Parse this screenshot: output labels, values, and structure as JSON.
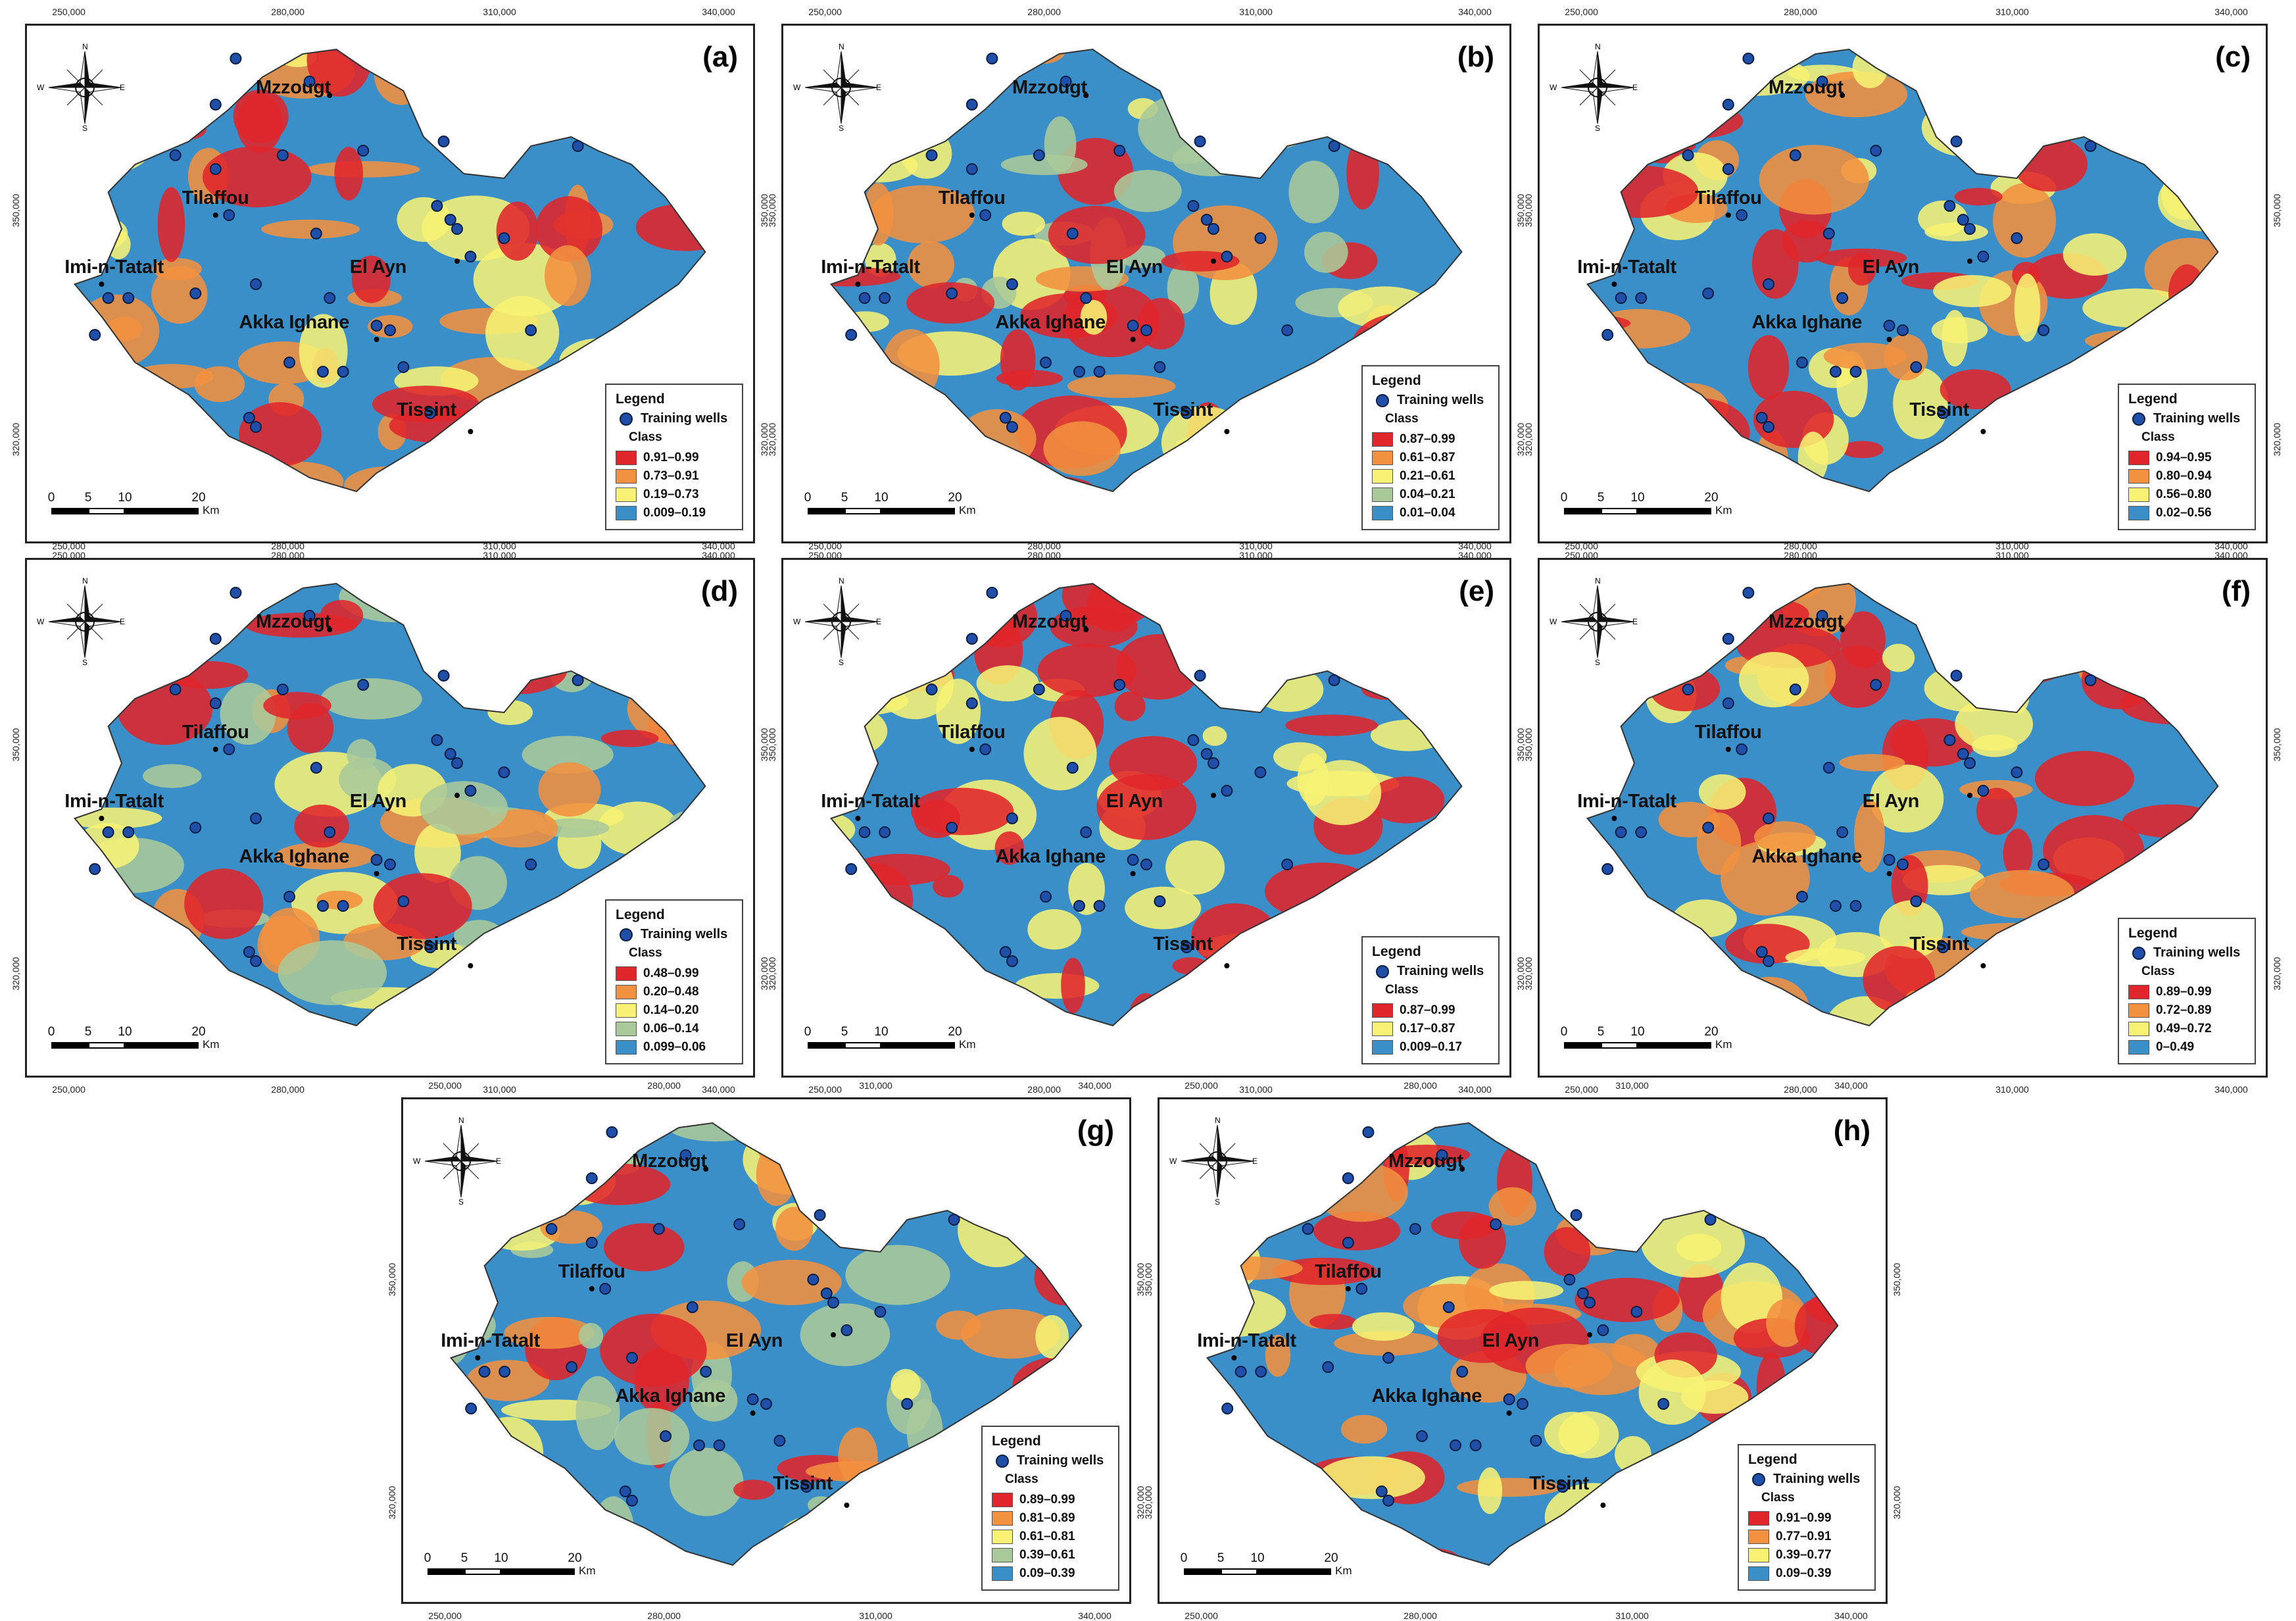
{
  "figure": {
    "panels": [
      {
        "id": "a",
        "label": "(a)",
        "legend_title": "Legend",
        "wells_label": "Training wells",
        "class_label": "Class",
        "classes": [
          {
            "range": "0.91–0.99",
            "color": "#e0262a"
          },
          {
            "range": "0.73–0.91",
            "color": "#f2913f"
          },
          {
            "range": "0.19–0.73",
            "color": "#f7f274"
          },
          {
            "range": "0.009–0.19",
            "color": "#3a8fc9"
          }
        ]
      },
      {
        "id": "b",
        "label": "(b)",
        "legend_title": "Legend",
        "wells_label": "Training wells",
        "class_label": "Class",
        "classes": [
          {
            "range": "0.87–0.99",
            "color": "#e0262a"
          },
          {
            "range": "0.61–0.87",
            "color": "#f2913f"
          },
          {
            "range": "0.21–0.61",
            "color": "#f7f274"
          },
          {
            "range": "0.04–0.21",
            "color": "#aac99a"
          },
          {
            "range": "0.01–0.04",
            "color": "#3a8fc9"
          }
        ]
      },
      {
        "id": "c",
        "label": "(c)",
        "legend_title": "Legend",
        "wells_label": "Training wells",
        "class_label": "Class",
        "classes": [
          {
            "range": "0.94–0.95",
            "color": "#e0262a"
          },
          {
            "range": "0.80–0.94",
            "color": "#f2913f"
          },
          {
            "range": "0.56–0.80",
            "color": "#f7f274"
          },
          {
            "range": "0.02–0.56",
            "color": "#3a8fc9"
          }
        ]
      },
      {
        "id": "d",
        "label": "(d)",
        "legend_title": "Legend",
        "wells_label": "Training wells",
        "class_label": "Class",
        "classes": [
          {
            "range": "0.48–0.99",
            "color": "#e0262a"
          },
          {
            "range": "0.20–0.48",
            "color": "#f2913f"
          },
          {
            "range": "0.14–0.20",
            "color": "#f7f274"
          },
          {
            "range": "0.06–0.14",
            "color": "#aac99a"
          },
          {
            "range": "0.099–0.06",
            "color": "#3a8fc9"
          }
        ]
      },
      {
        "id": "e",
        "label": "(e)",
        "legend_title": "Legend",
        "wells_label": "Training wells",
        "class_label": "Class",
        "classes": [
          {
            "range": "0.87–0.99",
            "color": "#e0262a"
          },
          {
            "range": "0.17–0.87",
            "color": "#f7f274"
          },
          {
            "range": "0.009–0.17",
            "color": "#3a8fc9"
          }
        ]
      },
      {
        "id": "f",
        "label": "(f)",
        "legend_title": "Legend",
        "wells_label": "Training wells",
        "class_label": "Class",
        "classes": [
          {
            "range": "0.89–0.99",
            "color": "#e0262a"
          },
          {
            "range": "0.72–0.89",
            "color": "#f2913f"
          },
          {
            "range": "0.49–0.72",
            "color": "#f7f274"
          },
          {
            "range": "0–0.49",
            "color": "#3a8fc9"
          }
        ]
      },
      {
        "id": "g",
        "label": "(g)",
        "legend_title": "Legend",
        "wells_label": "Training wells",
        "class_label": "Class",
        "classes": [
          {
            "range": "0.89–0.99",
            "color": "#e0262a"
          },
          {
            "range": "0.81–0.89",
            "color": "#f2913f"
          },
          {
            "range": "0.61–0.81",
            "color": "#f7f274"
          },
          {
            "range": "0.39–0.61",
            "color": "#aac99a"
          },
          {
            "range": "0.09–0.39",
            "color": "#3a8fc9"
          }
        ]
      },
      {
        "id": "h",
        "label": "(h)",
        "legend_title": "Legend",
        "wells_label": "Training wells",
        "class_label": "Class",
        "classes": [
          {
            "range": "0.91–0.99",
            "color": "#e0262a"
          },
          {
            "range": "0.77–0.91",
            "color": "#f2913f"
          },
          {
            "range": "0.39–0.77",
            "color": "#f7f274"
          },
          {
            "range": "0.09–0.39",
            "color": "#3a8fc9"
          }
        ]
      }
    ],
    "towns": [
      "Mzzougt",
      "Tilaffou",
      "El Ayn",
      "Imi-n-Tatalt",
      "Akka Ighane",
      "Tissint"
    ],
    "compass": {
      "n": "N",
      "s": "S",
      "e": "E",
      "w": "W"
    },
    "scalebar": {
      "ticks": [
        "0",
        "5",
        "10",
        "20"
      ],
      "unit": "Km"
    },
    "ticks": {
      "x": [
        "250,000",
        "280,000",
        "310,000",
        "340,000"
      ],
      "y": [
        "350,000",
        "320,000"
      ]
    }
  }
}
